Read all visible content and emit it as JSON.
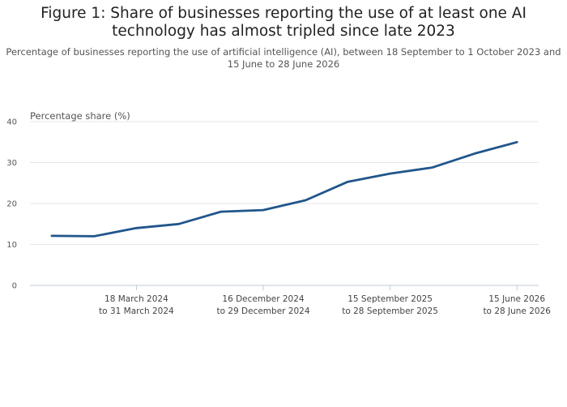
{
  "title": "Figure 1: Share of businesses reporting the use of at least one AI technology has almost tripled since late 2023",
  "subtitle": "Percentage of businesses reporting the use of artificial intelligence (AI), between 18 September to 1 October 2023 and 15 June to 28 June 2026",
  "chart_data": {
    "type": "line",
    "ylabel": "Percentage share (%)",
    "ylim": [
      0,
      40
    ],
    "yticks": [
      0,
      10,
      20,
      30,
      40
    ],
    "grid": true,
    "series": [
      {
        "color": "#20568c",
        "values": [
          12.1,
          12.0,
          14.0,
          15.0,
          18.0,
          18.4,
          20.8,
          25.3,
          27.3,
          28.8,
          32.2,
          35.0
        ]
      }
    ],
    "x_tick_labels": [
      {
        "index": 2,
        "line1": "18 March 2024",
        "line2": "to 31 March 2024"
      },
      {
        "index": 5,
        "line1": "16 December 2024",
        "line2": "to 29 December 2024"
      },
      {
        "index": 8,
        "line1": "15 September 2025",
        "line2": "to 28 September 2025"
      },
      {
        "index": 11,
        "line1": "15 June 2026",
        "line2": "to 28 June 2026"
      }
    ]
  }
}
